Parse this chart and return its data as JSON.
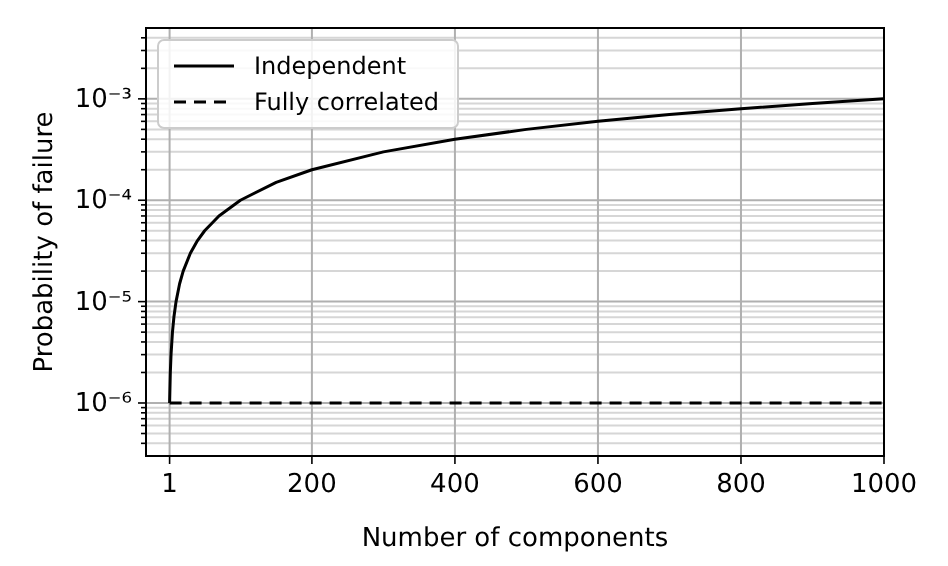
{
  "chart_data": {
    "type": "line",
    "xlabel": "Number of components",
    "ylabel": "Probability of failure",
    "log": "y",
    "grid": true,
    "legend": "top left",
    "xlim": [
      -32,
      1000
    ],
    "xticks": [
      1,
      200,
      400,
      600,
      800,
      1000
    ],
    "ylim": [
      3e-07,
      0.005
    ],
    "yticks": [
      {
        "value": 4e-07,
        "label": null
      },
      {
        "value": 5e-07,
        "label": null
      },
      {
        "value": 6e-07,
        "label": null
      },
      {
        "value": 7e-07,
        "label": null
      },
      {
        "value": 8e-07,
        "label": null
      },
      {
        "value": 9e-07,
        "label": null
      },
      {
        "value": 1e-06,
        "label": "10⁻⁶"
      },
      {
        "value": 2e-06,
        "label": null
      },
      {
        "value": 3e-06,
        "label": null
      },
      {
        "value": 4e-06,
        "label": null
      },
      {
        "value": 5e-06,
        "label": null
      },
      {
        "value": 6e-06,
        "label": null
      },
      {
        "value": 7e-06,
        "label": null
      },
      {
        "value": 8e-06,
        "label": null
      },
      {
        "value": 9e-06,
        "label": null
      },
      {
        "value": 1e-05,
        "label": "10⁻⁵"
      },
      {
        "value": 2e-05,
        "label": null
      },
      {
        "value": 3e-05,
        "label": null
      },
      {
        "value": 4e-05,
        "label": null
      },
      {
        "value": 5e-05,
        "label": null
      },
      {
        "value": 6e-05,
        "label": null
      },
      {
        "value": 7e-05,
        "label": null
      },
      {
        "value": 8e-05,
        "label": null
      },
      {
        "value": 9e-05,
        "label": null
      },
      {
        "value": 0.0001,
        "label": "10⁻⁴"
      },
      {
        "value": 0.0002,
        "label": null
      },
      {
        "value": 0.0003,
        "label": null
      },
      {
        "value": 0.0004,
        "label": null
      },
      {
        "value": 0.0005,
        "label": null
      },
      {
        "value": 0.0006,
        "label": null
      },
      {
        "value": 0.0007,
        "label": null
      },
      {
        "value": 0.0008,
        "label": null
      },
      {
        "value": 0.0009,
        "label": null
      },
      {
        "value": 0.001,
        "label": "10⁻³"
      },
      {
        "value": 0.002,
        "label": null
      },
      {
        "value": 0.003,
        "label": null
      },
      {
        "value": 0.004,
        "label": null
      }
    ],
    "series": [
      {
        "name": "Independent",
        "color": "#000000",
        "line_style": "solid",
        "x": [
          1,
          2,
          3,
          5,
          7,
          10,
          15,
          20,
          30,
          40,
          50,
          70,
          100,
          150,
          200,
          300,
          400,
          500,
          600,
          700,
          800,
          900,
          1000
        ],
        "values": [
          1e-06,
          2e-06,
          3e-06,
          5e-06,
          7e-06,
          1e-05,
          1.5e-05,
          2e-05,
          3e-05,
          4e-05,
          5e-05,
          7e-05,
          0.0001,
          0.00015,
          0.0002,
          0.0003,
          0.0004,
          0.0005,
          0.0006,
          0.0007,
          0.0008,
          0.0009,
          0.001
        ]
      },
      {
        "name": "Fully correlated",
        "color": "#000000",
        "line_style": "dashed",
        "x": [
          1,
          1000
        ],
        "values": [
          1e-06,
          1e-06
        ]
      }
    ]
  }
}
